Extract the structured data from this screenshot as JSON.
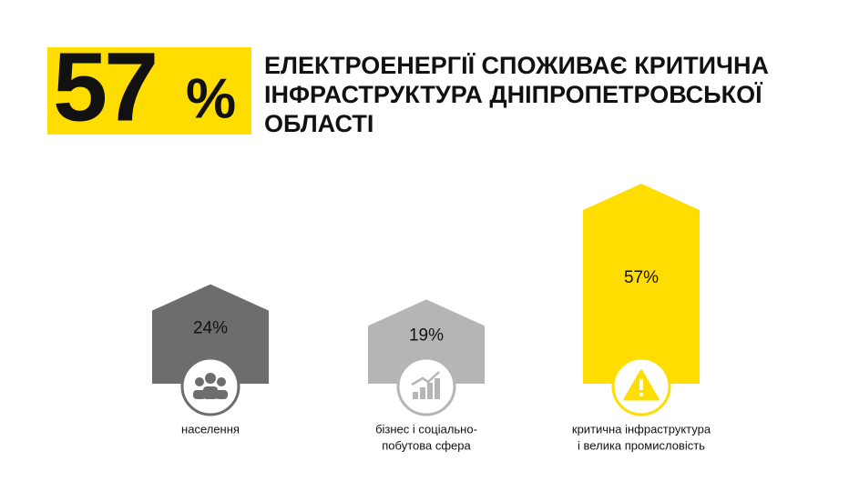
{
  "chart_data": {
    "type": "house-bar",
    "headline": "57",
    "headline_unit": "%",
    "title": [
      "ЕЛЕКТРОЕНЕРГІЇ СПОЖИВАЄ КРИТИЧНА",
      "ІНФРАСТРУКТУРА ДНІПРОПЕТРОВСЬКОЇ",
      "ОБЛАСТІ"
    ],
    "categories": [
      [
        "населення"
      ],
      [
        "бізнес і соціально-",
        "побутова сфера"
      ],
      [
        "критична інфраструктура",
        "і велика промисловість"
      ]
    ],
    "values": [
      24,
      19,
      57
    ],
    "value_labels": [
      "24%",
      "19%",
      "57%"
    ],
    "colors": [
      "#6d6d6d",
      "#b5b5b5",
      "#ffdd00"
    ],
    "accent": "#ffdd00"
  }
}
